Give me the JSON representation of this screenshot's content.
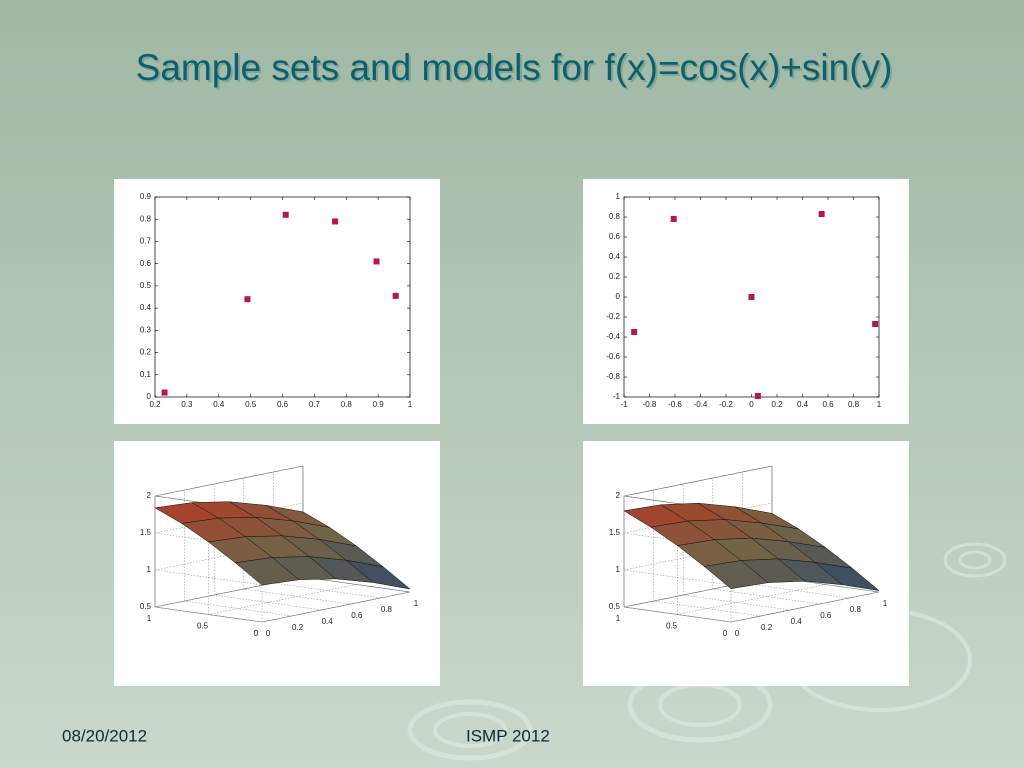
{
  "title": "Sample sets and models for f(x)=cos(x)+sin(y)",
  "footer": {
    "date": "08/20/2012",
    "event": "ISMP 2012"
  },
  "chart_data": [
    {
      "type": "scatter",
      "color": "#b5174e",
      "x": [
        0.23,
        0.49,
        0.61,
        0.765,
        0.895,
        0.955
      ],
      "values": [
        0.02,
        0.44,
        0.82,
        0.79,
        0.61,
        0.455
      ],
      "xlim": [
        0.2,
        1
      ],
      "xticks": [
        0.2,
        0.3,
        0.4,
        0.5,
        0.6,
        0.7,
        0.8,
        0.9,
        1
      ],
      "ylim": [
        0,
        0.9
      ],
      "yticks": [
        0,
        0.1,
        0.2,
        0.3,
        0.4,
        0.5,
        0.6,
        0.7,
        0.8,
        0.9
      ]
    },
    {
      "type": "scatter",
      "color": "#b5174e",
      "x": [
        -0.92,
        -0.61,
        0,
        0.05,
        0.55,
        0.97
      ],
      "values": [
        -0.35,
        0.78,
        0,
        -0.99,
        0.83,
        -0.27
      ],
      "xlim": [
        -1,
        1
      ],
      "xticks": [
        -1,
        -0.8,
        -0.6,
        -0.4,
        -0.2,
        0,
        0.2,
        0.4,
        0.6,
        0.8,
        1
      ],
      "ylim": [
        -1,
        1
      ],
      "yticks": [
        -1,
        -0.8,
        -0.6,
        -0.4,
        -0.2,
        0,
        0.2,
        0.4,
        0.6,
        0.8,
        1
      ]
    },
    {
      "type": "surface",
      "x": [
        0,
        0.25,
        0.5,
        0.75,
        1
      ],
      "y": [
        0,
        0.25,
        0.5,
        0.75,
        1
      ],
      "z": [
        [
          1,
          0.97,
          0.88,
          0.73,
          0.54
        ],
        [
          1.25,
          1.22,
          1.13,
          0.98,
          0.79
        ],
        [
          1.48,
          1.45,
          1.36,
          1.21,
          1.02
        ],
        [
          1.68,
          1.65,
          1.56,
          1.41,
          1.22
        ],
        [
          1.84,
          1.81,
          1.72,
          1.57,
          1.38
        ]
      ],
      "xlim": [
        0,
        1
      ],
      "xticks": [
        0,
        0.2,
        0.4,
        0.6,
        0.8,
        1
      ],
      "ylim": [
        0,
        1
      ],
      "yticks": [
        0,
        0.5,
        1
      ],
      "zlim": [
        0.5,
        2
      ],
      "zticks": [
        0.5,
        1,
        1.5,
        2
      ]
    },
    {
      "type": "surface",
      "x": [
        0,
        0.25,
        0.5,
        0.75,
        1
      ],
      "y": [
        0,
        0.25,
        0.5,
        0.75,
        1
      ],
      "z": [
        [
          0.95,
          0.93,
          0.85,
          0.7,
          0.52
        ],
        [
          1.2,
          1.18,
          1.1,
          0.95,
          0.77
        ],
        [
          1.43,
          1.41,
          1.33,
          1.18,
          1
        ],
        [
          1.63,
          1.61,
          1.53,
          1.38,
          1.2
        ],
        [
          1.8,
          1.78,
          1.7,
          1.55,
          1.36
        ]
      ],
      "xlim": [
        0,
        1
      ],
      "xticks": [
        0,
        0.2,
        0.4,
        0.6,
        0.8,
        1
      ],
      "ylim": [
        0,
        1
      ],
      "yticks": [
        0,
        0.5,
        1
      ],
      "zlim": [
        0.5,
        2
      ],
      "zticks": [
        0.5,
        1,
        1.5,
        2
      ]
    }
  ]
}
